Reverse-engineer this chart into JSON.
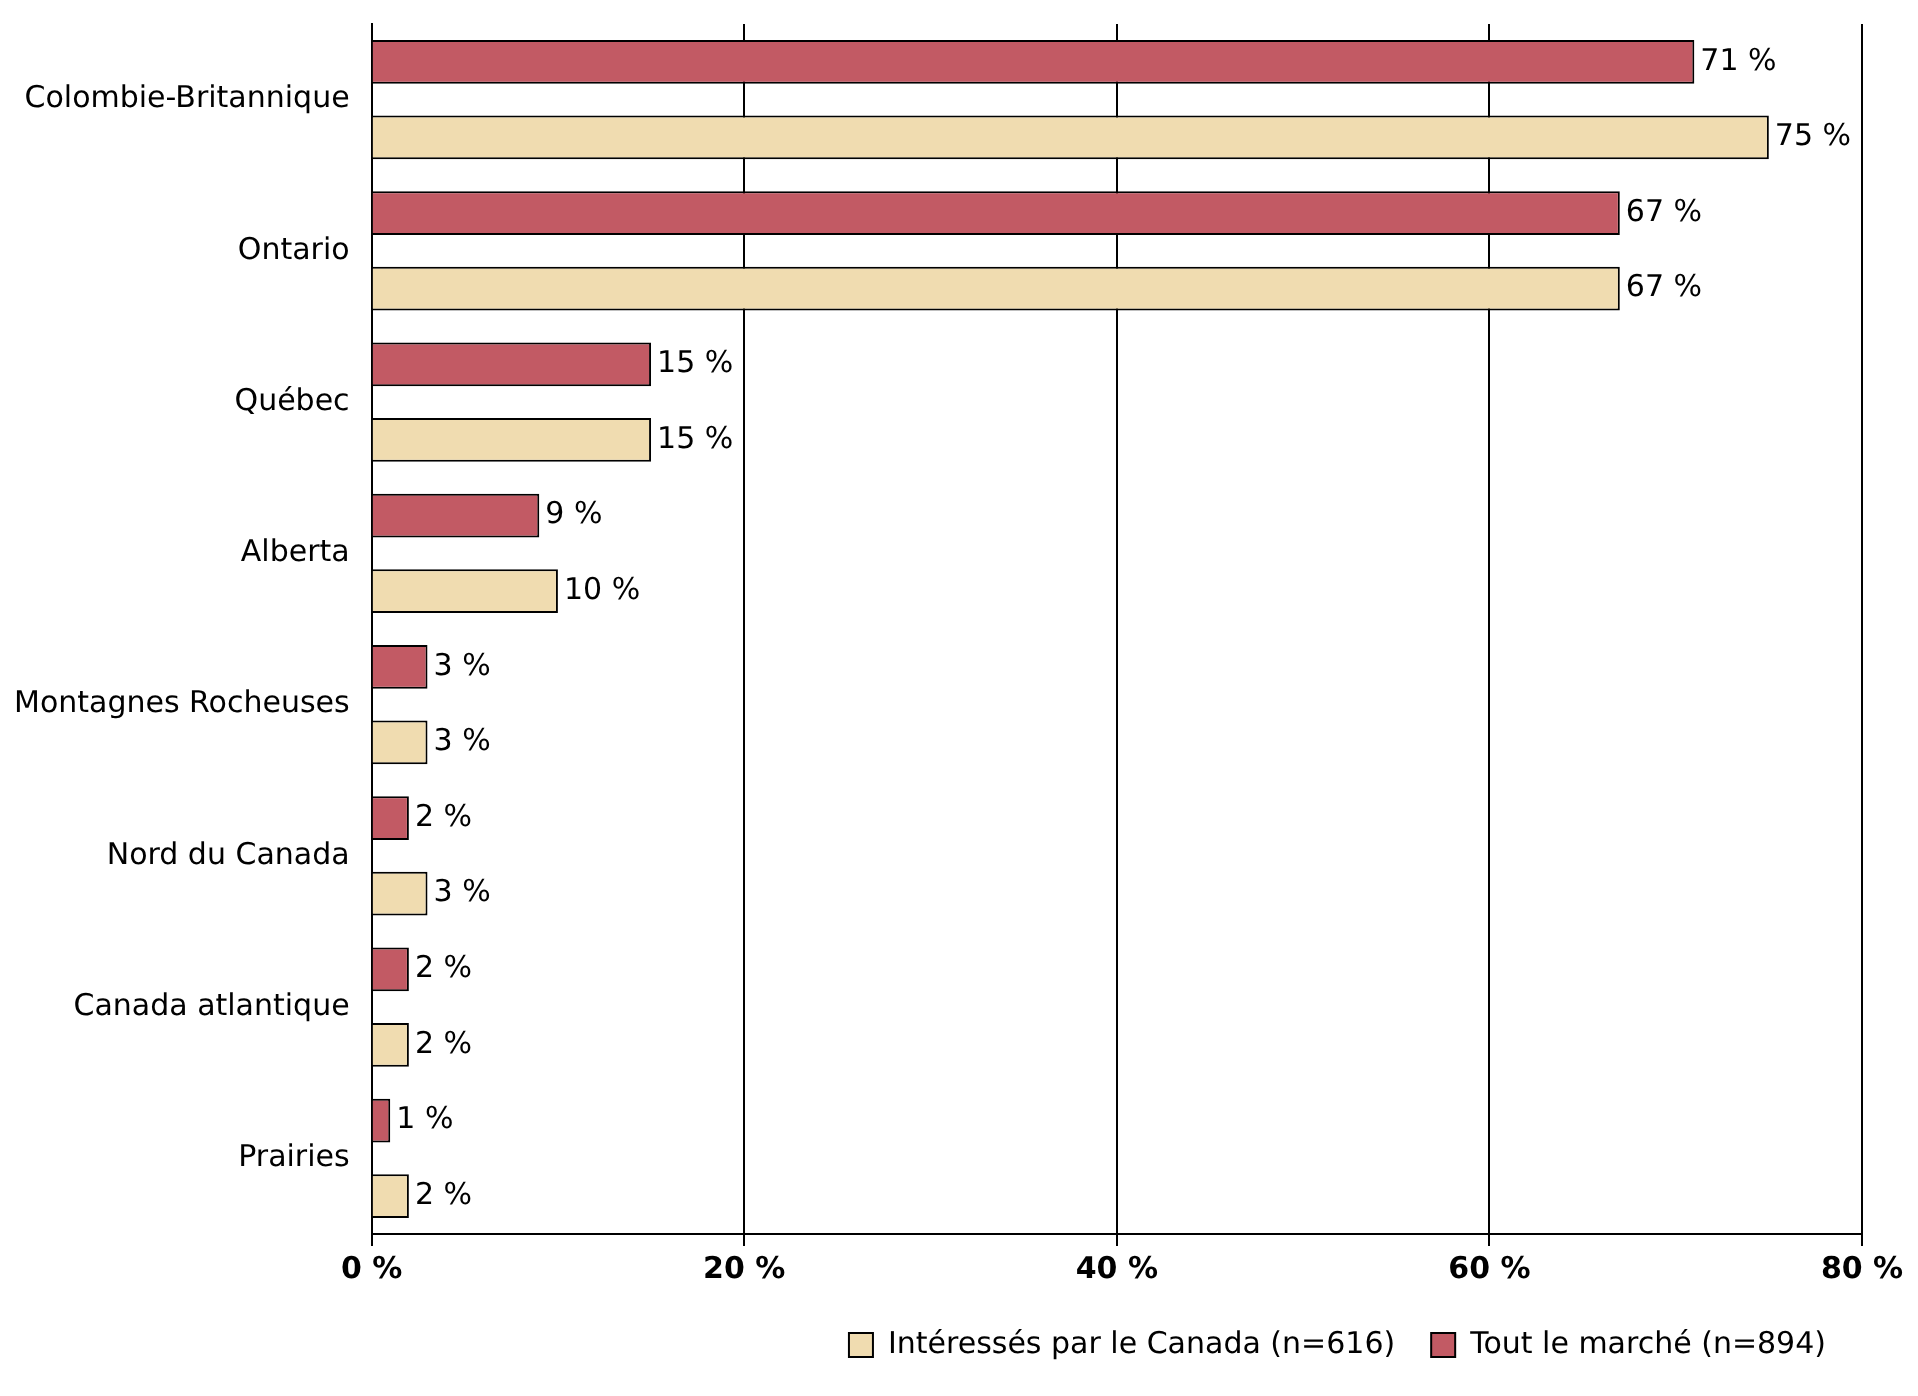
{
  "chart_data": {
    "type": "bar",
    "orientation": "horizontal",
    "categories": [
      "Colombie-Britannique",
      "Ontario",
      "Québec",
      "Alberta",
      "Montagnes Rocheuses",
      "Nord du Canada",
      "Canada atlantique",
      "Prairies"
    ],
    "series": [
      {
        "name": "Tout le marché (n=894)",
        "color": "#c25a64",
        "values": [
          71,
          67,
          15,
          9,
          3,
          2,
          2,
          1
        ],
        "value_labels": [
          "71 %",
          "67 %",
          "15 %",
          "9 %",
          "3 %",
          "2 %",
          "2 %",
          "1 %"
        ]
      },
      {
        "name": "Intéressés par le Canada (n=616)",
        "color": "#f0dcb0",
        "values": [
          75,
          67,
          15,
          10,
          3,
          3,
          2,
          2
        ],
        "value_labels": [
          "75 %",
          "67 %",
          "15 %",
          "10 %",
          "3 %",
          "3 %",
          "2 %",
          "2 %"
        ]
      }
    ],
    "xlim": [
      0,
      80
    ],
    "xticks": [
      {
        "value": 0,
        "label": "0 %"
      },
      {
        "value": 20,
        "label": "20 %"
      },
      {
        "value": 40,
        "label": "40 %"
      },
      {
        "value": 60,
        "label": "60 %"
      },
      {
        "value": 80,
        "label": "80 %"
      }
    ],
    "grid": "x",
    "legend": "bottom right"
  }
}
